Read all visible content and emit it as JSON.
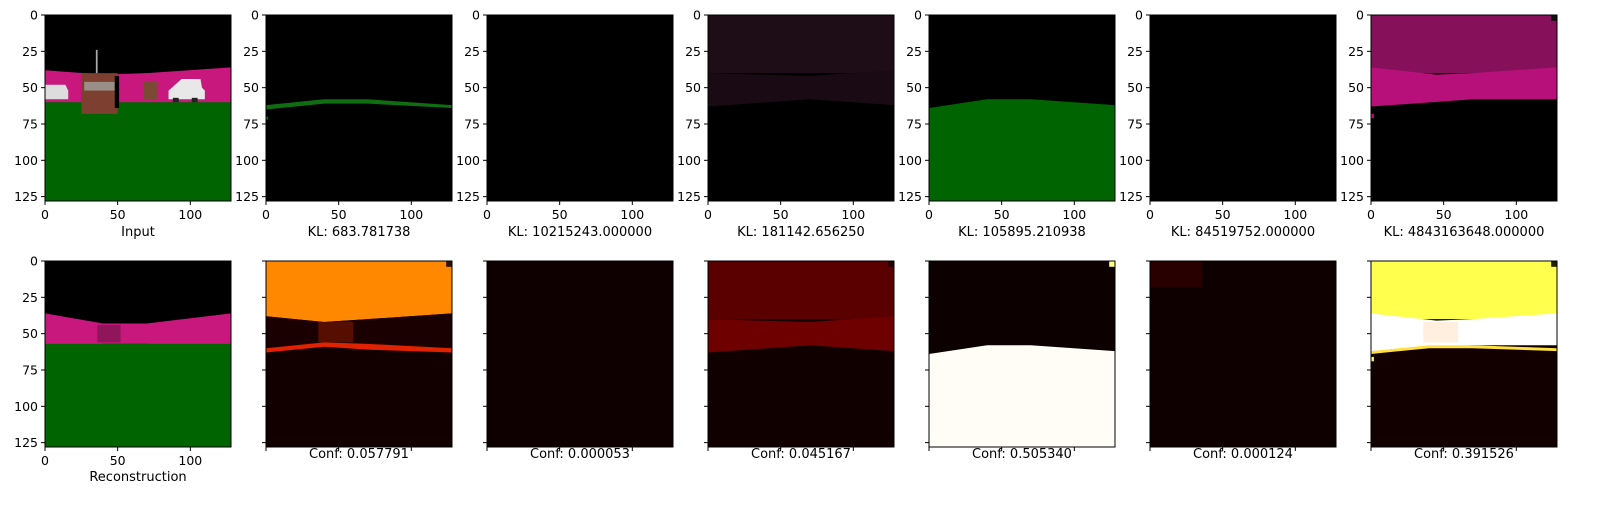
{
  "colors": {
    "background": "#ffffff",
    "black": "#000000",
    "magenta": "#c8177d",
    "green": "#006400",
    "orange": "#ff8800",
    "yellow": "#ffff4d"
  },
  "chart_data": {
    "type": "image_grid",
    "rows": 2,
    "cols": 7,
    "x_ticks": [
      "0",
      "50",
      "100"
    ],
    "y_ticks": [
      "0",
      "25",
      "50",
      "75",
      "100",
      "125"
    ],
    "image_size": [
      128,
      128
    ],
    "top_row": [
      {
        "label": "Input",
        "kind": "input"
      },
      {
        "label": "KL: 683.781738",
        "kind": "mask-green-line"
      },
      {
        "label": "KL: 10215243.000000",
        "kind": "mask-black"
      },
      {
        "label": "KL: 181142.656250",
        "kind": "mask-dark-sky"
      },
      {
        "label": "KL: 105895.210938",
        "kind": "mask-green-ground"
      },
      {
        "label": "KL: 84519752.000000",
        "kind": "mask-black"
      },
      {
        "label": "KL: 4843163648.000000",
        "kind": "mask-magenta-sky"
      }
    ],
    "bottom_row": [
      {
        "label": "Reconstruction",
        "kind": "reconstruction"
      },
      {
        "label": "Conf: 0.057791",
        "kind": "conf-orange"
      },
      {
        "label": "Conf: 0.000053",
        "kind": "conf-dark"
      },
      {
        "label": "Conf: 0.045167",
        "kind": "conf-red"
      },
      {
        "label": "Conf: 0.505340",
        "kind": "conf-white-ground"
      },
      {
        "label": "Conf: 0.000124",
        "kind": "conf-dark-speckle"
      },
      {
        "label": "Conf: 0.391526",
        "kind": "conf-yellow"
      }
    ]
  }
}
